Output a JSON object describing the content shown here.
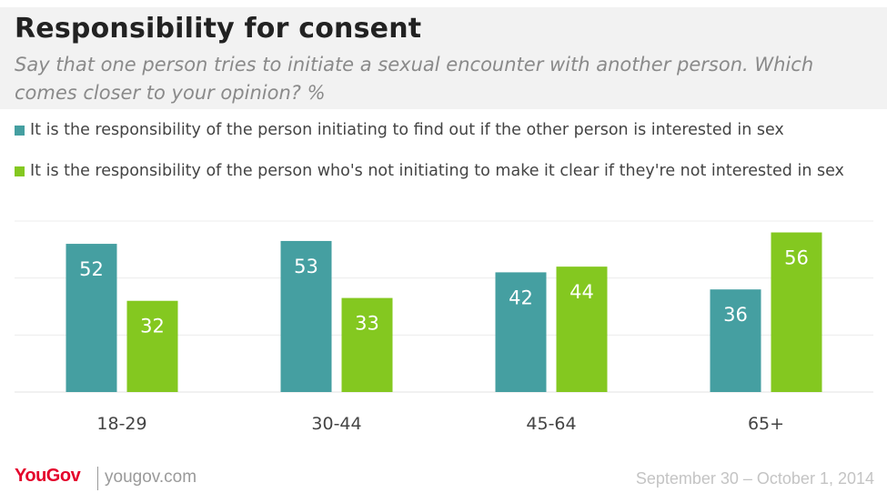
{
  "chart_data": {
    "type": "bar",
    "title": "Responsibility for consent",
    "subtitle": "Say that one person tries to initiate a sexual encounter with another person. Which comes closer to your opinion? %",
    "categories": [
      "18-29",
      "30-44",
      "45-64",
      "65+"
    ],
    "series": [
      {
        "name": "It is the responsibility of the person initiating to find out if the other person is interested in sex",
        "color": "#459fa1",
        "values": [
          52,
          53,
          42,
          36
        ]
      },
      {
        "name": "It is the responsibility of the person who's not initiating to make it clear if they're not interested in sex",
        "color": "#84c820",
        "values": [
          32,
          33,
          44,
          56
        ]
      }
    ],
    "ylim": [
      0,
      60
    ],
    "grid": true,
    "legend_placement": "top-left",
    "xlabel": "",
    "ylabel": ""
  },
  "footer": {
    "brand": "YouGov",
    "url": "yougov.com",
    "date": "September 30 – October 1, 2014"
  }
}
